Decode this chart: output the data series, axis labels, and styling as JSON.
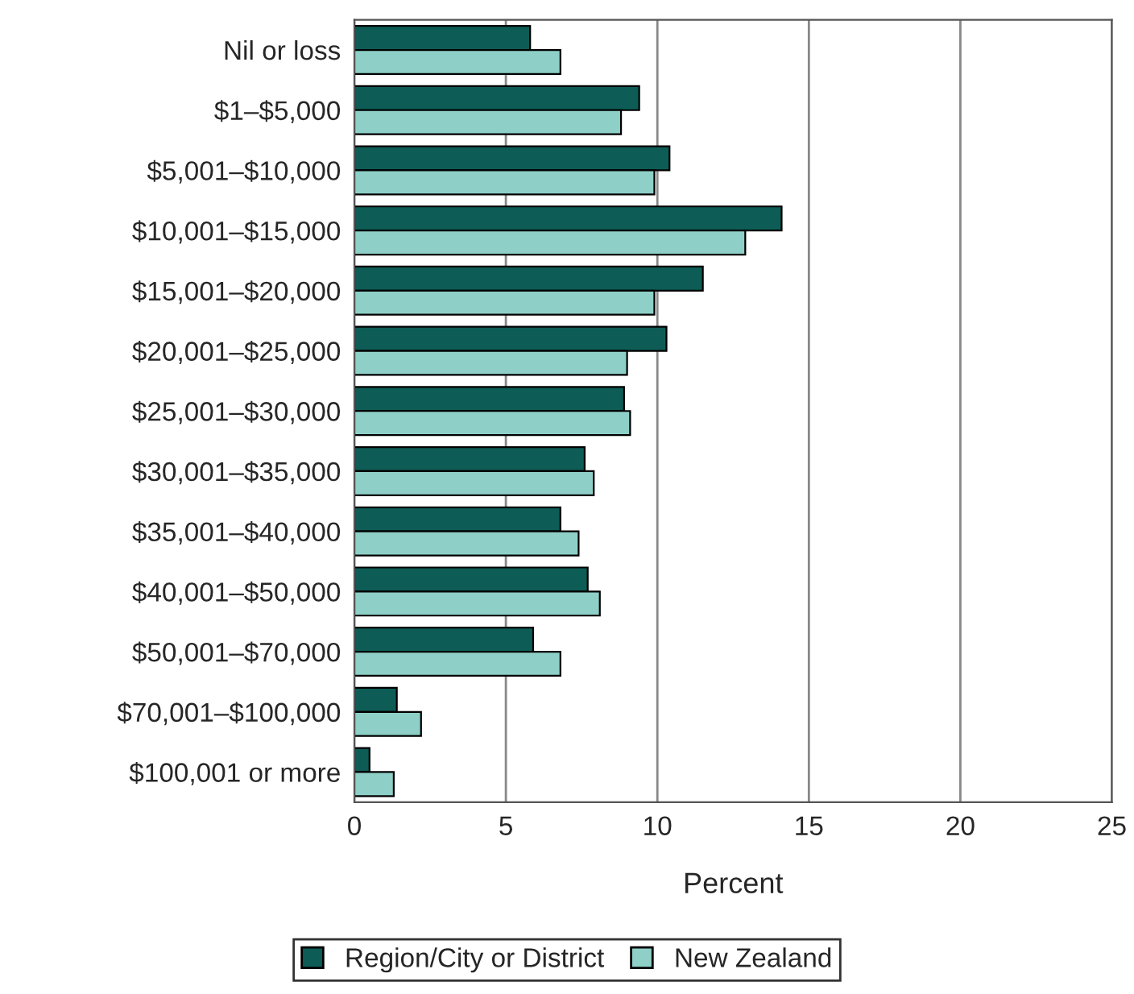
{
  "chart_data": {
    "type": "bar",
    "orientation": "horizontal",
    "xlabel": "Percent",
    "categories": [
      "Nil or loss",
      "$1–$5,000",
      "$5,001–$10,000",
      "$10,001–$15,000",
      "$15,001–$20,000",
      "$20,001–$25,000",
      "$25,001–$30,000",
      "$30,001–$35,000",
      "$35,001–$40,000",
      "$40,001–$50,000",
      "$50,001–$70,000",
      "$70,001–$100,000",
      "$100,001 or more"
    ],
    "series": [
      {
        "name": "Region/City or District",
        "color": "#0e5c56",
        "values": [
          5.8,
          9.4,
          10.4,
          14.1,
          11.5,
          10.3,
          8.9,
          7.6,
          6.8,
          7.7,
          5.9,
          1.4,
          0.5
        ]
      },
      {
        "name": "New Zealand",
        "color": "#8ed0c8",
        "values": [
          6.8,
          8.8,
          9.9,
          12.9,
          9.9,
          9.0,
          9.1,
          7.9,
          7.4,
          8.1,
          6.8,
          2.2,
          1.3
        ]
      }
    ],
    "xlim": [
      0,
      25
    ],
    "xticks": [
      0,
      5,
      10,
      15,
      20,
      25
    ],
    "grid": "x",
    "legend": "bottom"
  }
}
